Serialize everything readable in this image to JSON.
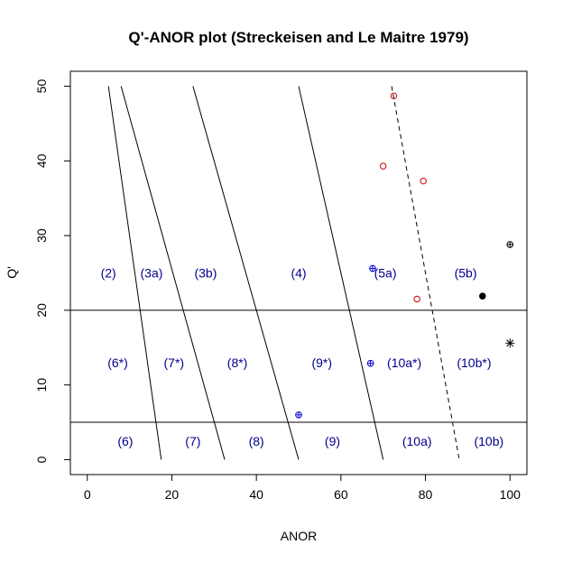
{
  "chart_data": {
    "type": "scatter",
    "title": "Q'-ANOR plot (Streckeisen and Le Maitre 1979)",
    "xlabel": "ANOR",
    "ylabel": "Q'",
    "xlim": [
      -4,
      104
    ],
    "ylim": [
      -2,
      52
    ],
    "x_ticks": [
      "0",
      "20",
      "40",
      "60",
      "80",
      "100"
    ],
    "y_ticks": [
      "0",
      "10",
      "20",
      "30",
      "40",
      "50"
    ],
    "grid": false,
    "boundaries": [
      {
        "x": [
          5,
          17.5
        ],
        "y": [
          50,
          0
        ],
        "style": "solid"
      },
      {
        "x": [
          8,
          32.5
        ],
        "y": [
          50,
          0
        ],
        "style": "solid"
      },
      {
        "x": [
          25,
          50
        ],
        "y": [
          50,
          0
        ],
        "style": "solid"
      },
      {
        "x": [
          50,
          70
        ],
        "y": [
          50,
          0
        ],
        "style": "solid"
      },
      {
        "x": [
          72,
          88
        ],
        "y": [
          50,
          0
        ],
        "style": "dashed"
      },
      {
        "x": [
          -4,
          104
        ],
        "y": [
          20,
          20
        ],
        "style": "solid"
      },
      {
        "x": [
          -4,
          104
        ],
        "y": [
          5,
          5
        ],
        "style": "solid"
      }
    ],
    "field_labels": [
      {
        "text": "(2)",
        "x": 5,
        "y": 25
      },
      {
        "text": "(3a)",
        "x": 15.2,
        "y": 25
      },
      {
        "text": "(3b)",
        "x": 28,
        "y": 25
      },
      {
        "text": "(4)",
        "x": 50,
        "y": 25
      },
      {
        "text": "(5a)",
        "x": 70.5,
        "y": 25
      },
      {
        "text": "(5b)",
        "x": 89.5,
        "y": 25
      },
      {
        "text": "(6*)",
        "x": 7.2,
        "y": 13
      },
      {
        "text": "(7*)",
        "x": 20.5,
        "y": 13
      },
      {
        "text": "(8*)",
        "x": 35.5,
        "y": 13
      },
      {
        "text": "(9*)",
        "x": 55.5,
        "y": 13
      },
      {
        "text": "(10a*)",
        "x": 75,
        "y": 13
      },
      {
        "text": "(10b*)",
        "x": 91.5,
        "y": 13
      },
      {
        "text": "(6)",
        "x": 9,
        "y": 2.5
      },
      {
        "text": "(7)",
        "x": 25,
        "y": 2.5
      },
      {
        "text": "(8)",
        "x": 40,
        "y": 2.5
      },
      {
        "text": "(9)",
        "x": 58,
        "y": 2.5
      },
      {
        "text": "(10a)",
        "x": 78,
        "y": 2.5
      },
      {
        "text": "(10b)",
        "x": 95,
        "y": 2.5
      }
    ],
    "series": [
      {
        "marker": "open-circle",
        "color": "#cc0000",
        "x": [
          72.5,
          70,
          79.5,
          78
        ],
        "y": [
          48.7,
          39.3,
          37.3,
          21.5
        ]
      },
      {
        "marker": "circle-plus",
        "color": "#0000cc",
        "x": [
          67.5,
          67,
          50
        ],
        "y": [
          25.6,
          12.9,
          6
        ]
      },
      {
        "marker": "circle-plus",
        "color": "#000000",
        "x": [
          100
        ],
        "y": [
          28.8
        ]
      },
      {
        "marker": "filled-circle",
        "color": "#000000",
        "x": [
          93.5
        ],
        "y": [
          21.9
        ]
      },
      {
        "marker": "asterisk",
        "color": "#000000",
        "x": [
          100
        ],
        "y": [
          15.6
        ]
      }
    ]
  }
}
